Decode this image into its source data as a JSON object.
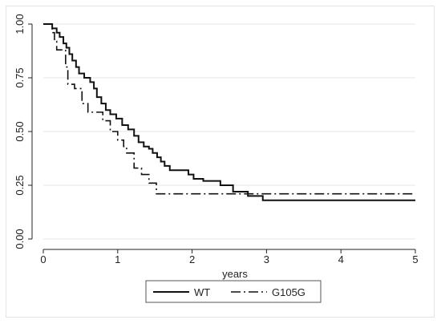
{
  "chart_data": {
    "type": "line",
    "step": true,
    "xlabel": "years",
    "ylabel": "",
    "xlim": [
      0,
      5
    ],
    "ylim": [
      0,
      1
    ],
    "x_ticks": [
      "0",
      "1",
      "2",
      "3",
      "4",
      "5"
    ],
    "y_ticks": [
      "0.00",
      "0.25",
      "0.50",
      "0.75",
      "1.00"
    ],
    "grid": "horizontal",
    "legend_position": "bottom",
    "series": [
      {
        "name": "WT",
        "style": "solid",
        "color": "#111111",
        "points": [
          [
            0,
            1.0
          ],
          [
            0.12,
            0.98
          ],
          [
            0.18,
            0.96
          ],
          [
            0.22,
            0.94
          ],
          [
            0.27,
            0.91
          ],
          [
            0.31,
            0.89
          ],
          [
            0.35,
            0.86
          ],
          [
            0.39,
            0.83
          ],
          [
            0.44,
            0.8
          ],
          [
            0.48,
            0.77
          ],
          [
            0.55,
            0.75
          ],
          [
            0.63,
            0.73
          ],
          [
            0.68,
            0.7
          ],
          [
            0.72,
            0.66
          ],
          [
            0.78,
            0.63
          ],
          [
            0.84,
            0.6
          ],
          [
            0.9,
            0.58
          ],
          [
            0.98,
            0.56
          ],
          [
            1.06,
            0.53
          ],
          [
            1.14,
            0.51
          ],
          [
            1.22,
            0.48
          ],
          [
            1.28,
            0.45
          ],
          [
            1.35,
            0.43
          ],
          [
            1.42,
            0.42
          ],
          [
            1.47,
            0.4
          ],
          [
            1.53,
            0.38
          ],
          [
            1.58,
            0.36
          ],
          [
            1.63,
            0.34
          ],
          [
            1.7,
            0.32
          ],
          [
            1.95,
            0.3
          ],
          [
            2.02,
            0.28
          ],
          [
            2.15,
            0.27
          ],
          [
            2.38,
            0.25
          ],
          [
            2.55,
            0.22
          ],
          [
            2.75,
            0.2
          ],
          [
            2.95,
            0.18
          ],
          [
            5.0,
            0.18
          ]
        ]
      },
      {
        "name": "G105G",
        "style": "dash-dot",
        "color": "#111111",
        "points": [
          [
            0,
            1.0
          ],
          [
            0.12,
            0.96
          ],
          [
            0.15,
            0.92
          ],
          [
            0.18,
            0.88
          ],
          [
            0.3,
            0.8
          ],
          [
            0.33,
            0.72
          ],
          [
            0.42,
            0.7
          ],
          [
            0.52,
            0.63
          ],
          [
            0.6,
            0.59
          ],
          [
            0.8,
            0.55
          ],
          [
            0.9,
            0.5
          ],
          [
            1.0,
            0.46
          ],
          [
            1.08,
            0.43
          ],
          [
            1.12,
            0.4
          ],
          [
            1.22,
            0.33
          ],
          [
            1.32,
            0.3
          ],
          [
            1.42,
            0.26
          ],
          [
            1.52,
            0.21
          ],
          [
            5.0,
            0.21
          ]
        ]
      }
    ]
  }
}
